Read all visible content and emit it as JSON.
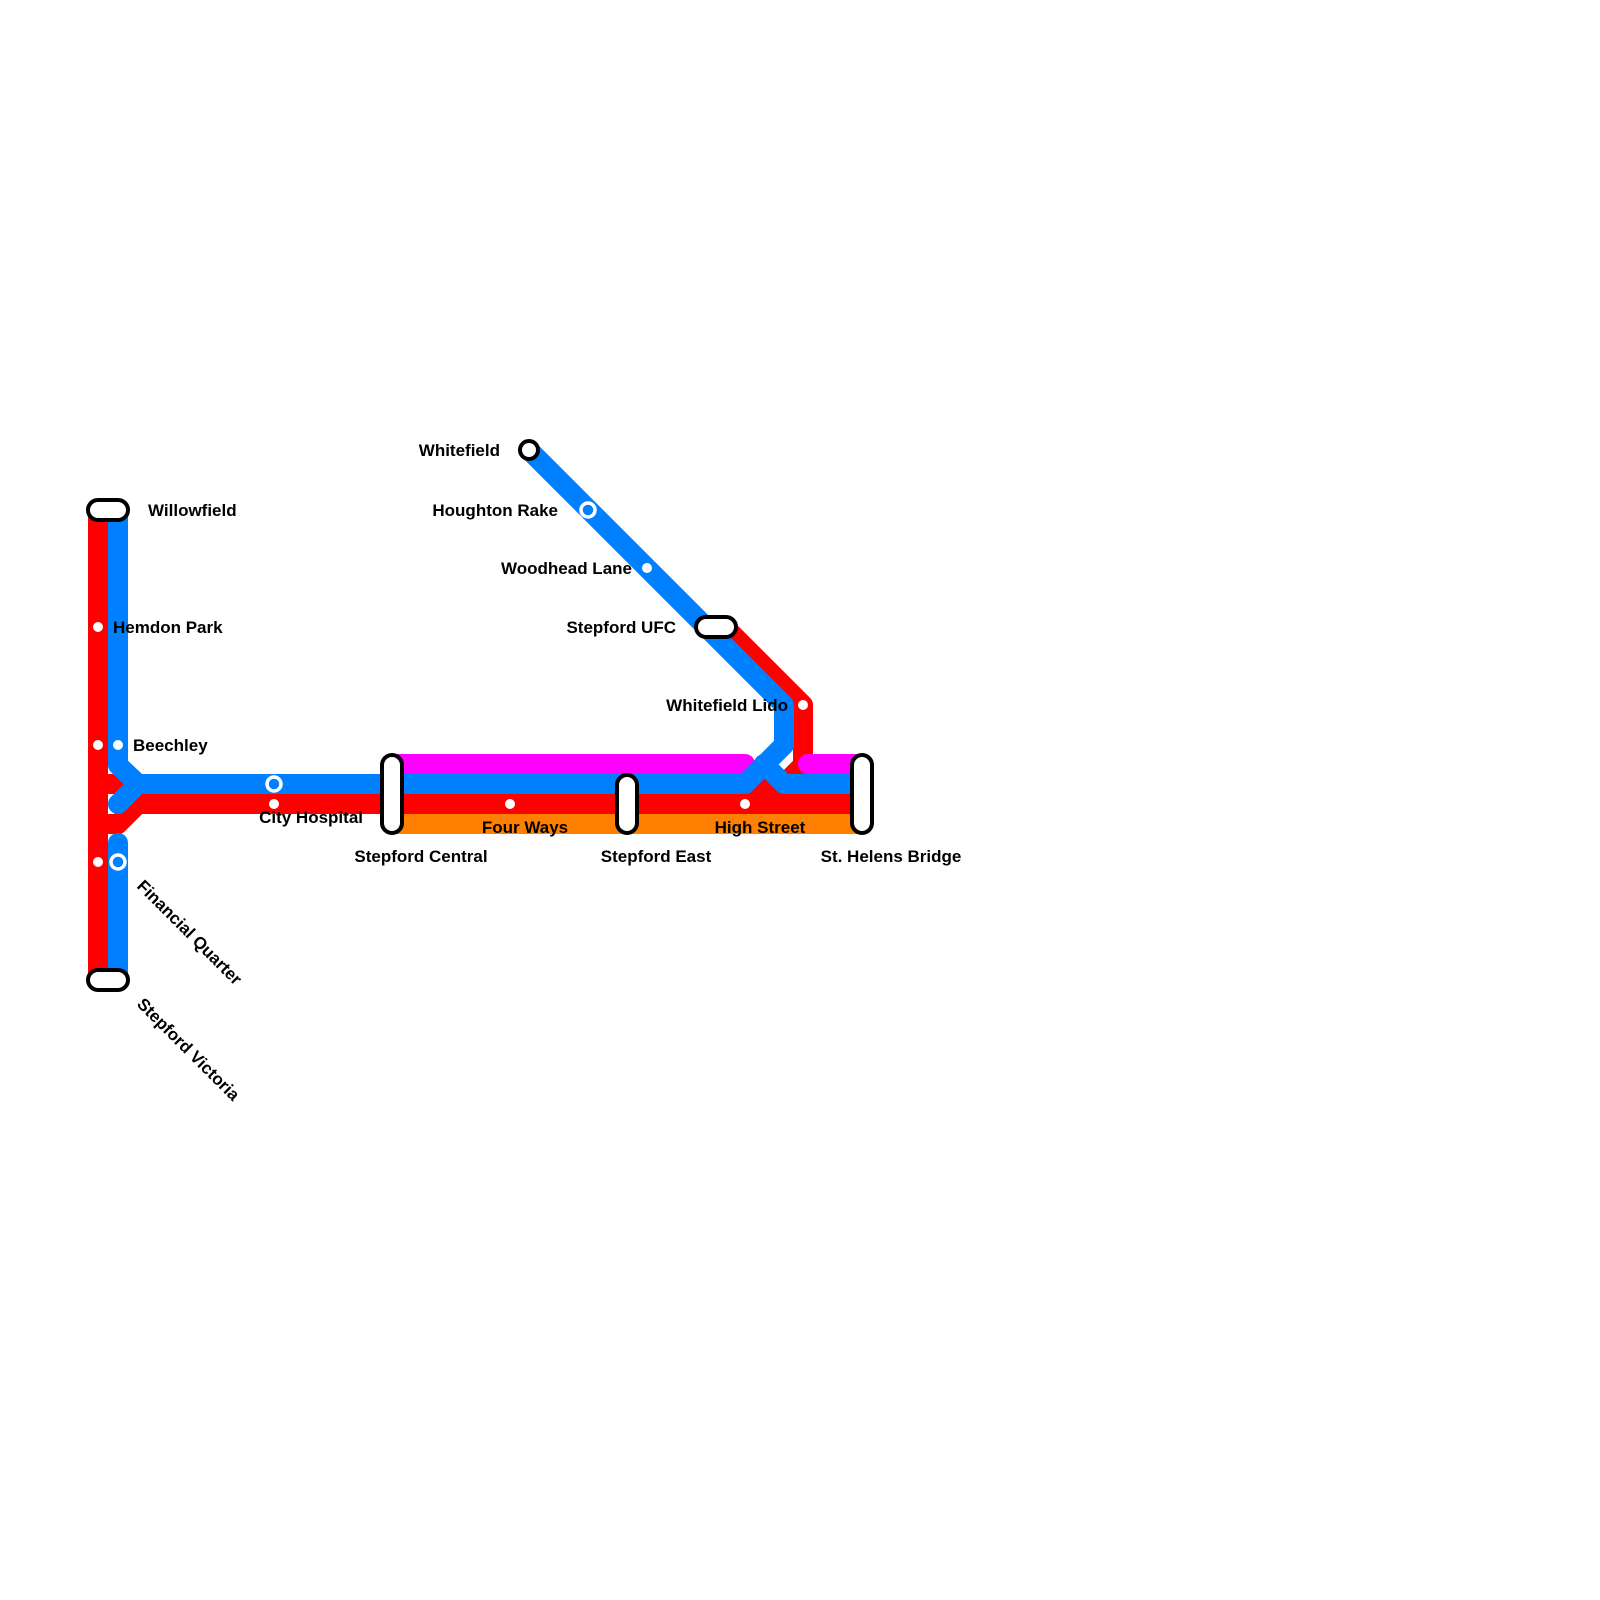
{
  "colors": {
    "red": "#ff0000",
    "blue": "#0080ff",
    "magenta": "#ff00ff",
    "orange": "#ff8000"
  },
  "stations": {
    "willowfield": "Willowfield",
    "hemdon_park": "Hemdon Park",
    "beechley": "Beechley",
    "city_hospital": "City Hospital",
    "financial_quarter": "Financial Quarter",
    "stepford_victoria": "Stepford Victoria",
    "stepford_central": "Stepford Central",
    "four_ways": "Four Ways",
    "stepford_east": "Stepford East",
    "high_street": "High Street",
    "st_helens_bridge": "St. Helens Bridge",
    "whitefield": "Whitefield",
    "houghton_rake": "Houghton Rake",
    "woodhead_lane": "Woodhead Lane",
    "stepford_ufc": "Stepford UFC",
    "whitefield_lido": "Whitefield Lido"
  }
}
